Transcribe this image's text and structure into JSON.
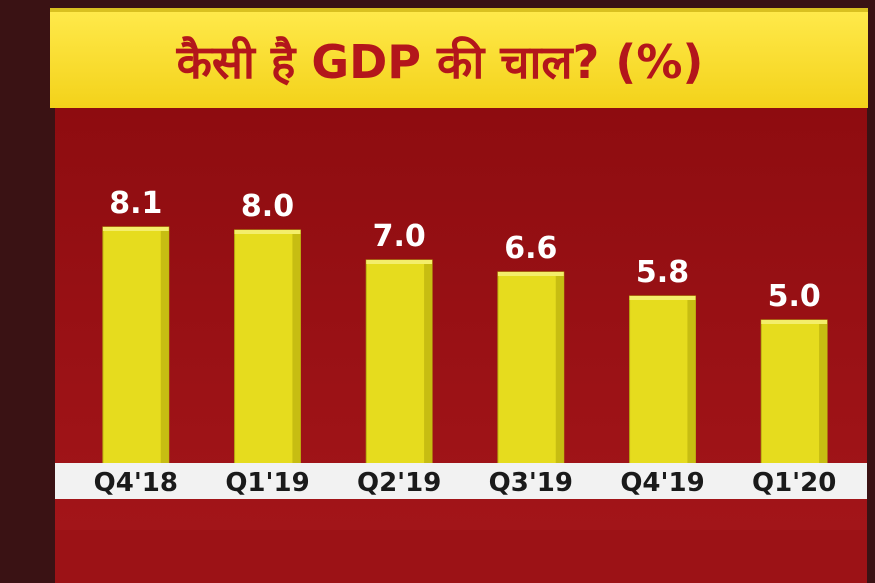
{
  "chart_data": {
    "type": "bar",
    "title": "कैसी है GDP की चाल? (%)",
    "categories": [
      "Q4'18",
      "Q1'19",
      "Q2'19",
      "Q3'19",
      "Q4'19",
      "Q1'20"
    ],
    "values": [
      8.1,
      8.0,
      7.0,
      6.6,
      5.8,
      5.0
    ],
    "value_labels": [
      "8.1",
      "8.0",
      "7.0",
      "6.6",
      "5.8",
      "5.0"
    ],
    "color": "#e6dc1e"
  }
}
